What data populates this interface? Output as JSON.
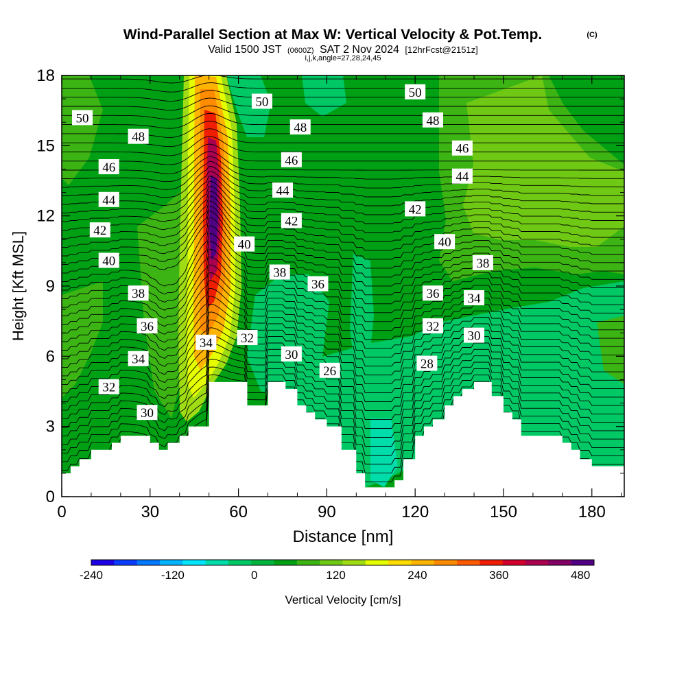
{
  "header": {
    "title": "Wind-Parallel Section at Max W: Vertical Velocity & Pot.Temp.",
    "copyright": "(C)",
    "valid_prefix": "Valid 1500 JST",
    "valid_utc": "(0600Z)",
    "valid_date": "SAT 2 Nov 2024",
    "forecast": "[12hrFcst@2151z]",
    "params": "i,j,k,angle=27,28,24,45"
  },
  "chart_data": {
    "type": "heatmap",
    "xlabel": "Distance [nm]",
    "ylabel": "Height [Kft MSL]",
    "xlim": [
      0,
      191
    ],
    "ylim": [
      0,
      18
    ],
    "xticks": [
      0,
      30,
      60,
      90,
      120,
      150,
      180
    ],
    "yticks": [
      0,
      3,
      6,
      9,
      12,
      15,
      18
    ],
    "colorbar": {
      "label": "Vertical Velocity [cm/s]",
      "min": -240,
      "max": 500,
      "tick_values": [
        -240,
        -120,
        0,
        120,
        240,
        360,
        480
      ],
      "colors": [
        "#1e00e6",
        "#0a3cff",
        "#0078ff",
        "#00b4ff",
        "#00e6ff",
        "#00dcaa",
        "#00c864",
        "#00b43c",
        "#00a014",
        "#3cb414",
        "#6ec814",
        "#a0dc14",
        "#e6ff00",
        "#ffdc00",
        "#ffb400",
        "#ff8c00",
        "#ff5a00",
        "#f01e00",
        "#d2002d",
        "#aa0050",
        "#820064",
        "#500082"
      ]
    },
    "terrain_profile": {
      "x": [
        0,
        3,
        6,
        10,
        17,
        20,
        30,
        33,
        36,
        40,
        43,
        50,
        53,
        56,
        60,
        63,
        66,
        70,
        73,
        76,
        80,
        83,
        86,
        90,
        95,
        100,
        103,
        106,
        108,
        110,
        113,
        116,
        120,
        123,
        126,
        130,
        133,
        136,
        140,
        143,
        146,
        150,
        153,
        156,
        160,
        163,
        166,
        170,
        173,
        176,
        180,
        183,
        186,
        191
      ],
      "height": [
        1.0,
        1.3,
        1.6,
        2.0,
        2.3,
        2.6,
        2.3,
        2.0,
        2.3,
        2.6,
        3.0,
        4.9,
        4.9,
        4.9,
        4.9,
        3.9,
        3.9,
        4.9,
        4.9,
        4.6,
        3.9,
        3.6,
        3.3,
        3.0,
        2.0,
        1.0,
        0.4,
        0.4,
        0.4,
        0.4,
        0.7,
        1.6,
        2.6,
        3.0,
        3.3,
        3.9,
        4.3,
        4.6,
        4.9,
        4.9,
        4.3,
        3.6,
        3.3,
        2.6,
        2.6,
        2.6,
        2.6,
        2.3,
        2.0,
        1.6,
        1.3,
        1.3,
        1.3,
        1.3
      ]
    },
    "updraft_core": {
      "x": 50,
      "height": 12,
      "w_max": 480
    },
    "isentropes_labels": [
      {
        "value": "50",
        "x": 7,
        "height": 16.2
      },
      {
        "value": "48",
        "x": 26,
        "height": 15.4
      },
      {
        "value": "46",
        "x": 16,
        "height": 14.1
      },
      {
        "value": "44",
        "x": 16,
        "height": 12.7
      },
      {
        "value": "42",
        "x": 13,
        "height": 11.4
      },
      {
        "value": "40",
        "x": 16,
        "height": 10.1
      },
      {
        "value": "38",
        "x": 26,
        "height": 8.7
      },
      {
        "value": "36",
        "x": 29,
        "height": 7.3
      },
      {
        "value": "34",
        "x": 26,
        "height": 5.9
      },
      {
        "value": "32",
        "x": 16,
        "height": 4.7
      },
      {
        "value": "30",
        "x": 29,
        "height": 3.6
      },
      {
        "value": "34",
        "x": 49,
        "height": 6.6
      },
      {
        "value": "32",
        "x": 63,
        "height": 6.8
      },
      {
        "value": "30",
        "x": 78,
        "height": 6.1
      },
      {
        "value": "26",
        "x": 91,
        "height": 5.4
      },
      {
        "value": "40",
        "x": 62,
        "height": 10.8
      },
      {
        "value": "38",
        "x": 74,
        "height": 9.6
      },
      {
        "value": "36",
        "x": 87,
        "height": 9.1
      },
      {
        "value": "42",
        "x": 78,
        "height": 11.8
      },
      {
        "value": "44",
        "x": 75,
        "height": 13.1
      },
      {
        "value": "46",
        "x": 78,
        "height": 14.4
      },
      {
        "value": "48",
        "x": 81,
        "height": 15.8
      },
      {
        "value": "50",
        "x": 68,
        "height": 16.9
      },
      {
        "value": "50",
        "x": 120,
        "height": 17.3
      },
      {
        "value": "48",
        "x": 126,
        "height": 16.1
      },
      {
        "value": "46",
        "x": 136,
        "height": 14.9
      },
      {
        "value": "44",
        "x": 136,
        "height": 13.7
      },
      {
        "value": "42",
        "x": 120,
        "height": 12.3
      },
      {
        "value": "40",
        "x": 130,
        "height": 10.9
      },
      {
        "value": "38",
        "x": 143,
        "height": 10.0
      },
      {
        "value": "36",
        "x": 126,
        "height": 8.7
      },
      {
        "value": "34",
        "x": 140,
        "height": 8.5
      },
      {
        "value": "32",
        "x": 126,
        "height": 7.3
      },
      {
        "value": "30",
        "x": 140,
        "height": 6.9
      },
      {
        "value": "28",
        "x": 124,
        "height": 5.7
      }
    ]
  }
}
